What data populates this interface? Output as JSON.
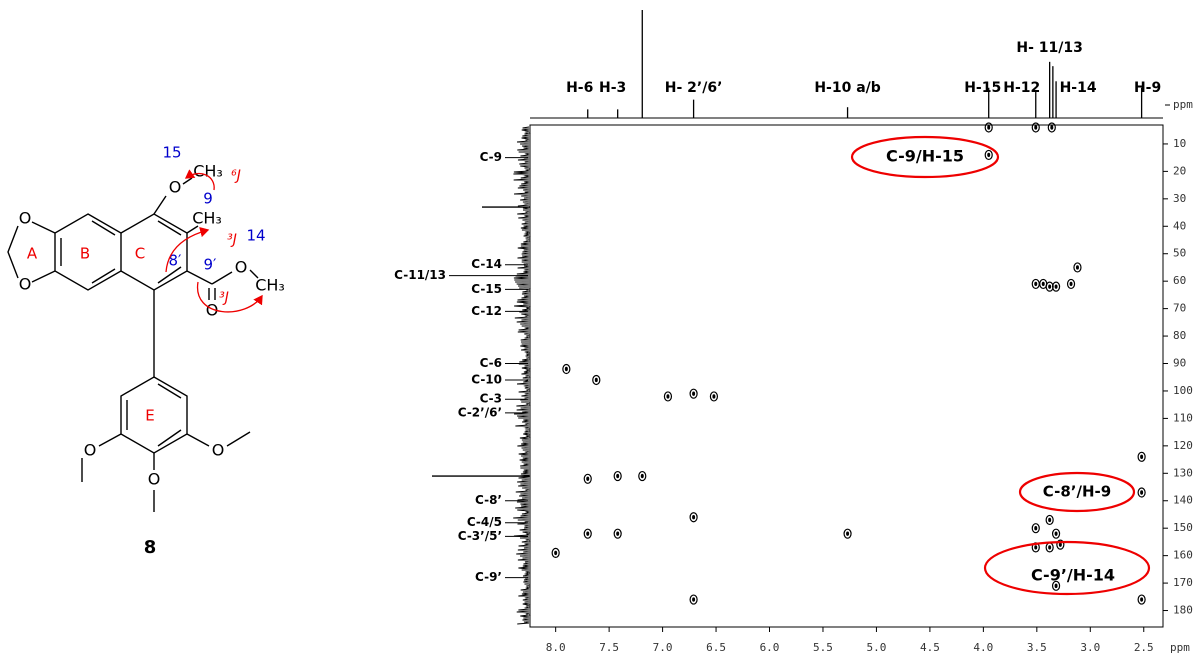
{
  "structure": {
    "atoms": [
      "O",
      "O",
      "O",
      "CH₃",
      "CH₃",
      "O",
      "O",
      "CH₃",
      "O",
      "O",
      "O"
    ],
    "ring_labels": [
      "A",
      "B",
      "C",
      "E"
    ],
    "atom_numbers": [
      "15",
      "9",
      "8′",
      "9′",
      "14"
    ],
    "couplings": [
      "⁶J",
      "³J",
      "³J"
    ],
    "compound": "8"
  },
  "spectrum": {
    "xlim": [
      8.24,
      2.32
    ],
    "ylim": [
      3.1,
      186
    ],
    "xticks": [
      {
        "value": 8,
        "label": "8.0"
      },
      7.5,
      {
        "value": 7,
        "label": "7.0"
      },
      6.5,
      {
        "value": 6,
        "label": "6.0"
      },
      5.5,
      {
        "value": 5,
        "label": "5.0"
      },
      4.5,
      {
        "value": 4,
        "label": "4.0"
      },
      3.5,
      {
        "value": 3,
        "label": "3.0"
      },
      2.5
    ],
    "yticks": [
      10,
      20,
      30,
      40,
      50,
      60,
      70,
      80,
      90,
      100,
      110,
      120,
      130,
      140,
      150,
      160,
      170,
      180
    ],
    "x_unit": "ppm",
    "y_unit": "ppm",
    "proton_peaks": [
      {
        "label": "H-6",
        "shift": 7.7,
        "intensity": 8
      },
      {
        "label": "H-3",
        "shift": 7.42,
        "intensity": 8
      },
      {
        "label": "H- 2’/6’",
        "shift": 6.71,
        "intensity": 17
      },
      {
        "label": "H-10 a/b",
        "shift": 5.27,
        "intensity": 10
      },
      {
        "label": "H-15",
        "shift": 3.95,
        "intensity": 28
      },
      {
        "label": "H-12",
        "shift": 3.51,
        "intensity": 26
      },
      {
        "label": "H- 11/13",
        "shift": 3.38,
        "intensity": 52
      },
      {
        "label": "H-14",
        "shift": 3.32,
        "intensity": 34
      },
      {
        "label": "H-9",
        "shift": 2.52,
        "intensity": 28
      },
      {
        "label": null,
        "shift": 7.19,
        "intensity": 100
      },
      {
        "label": null,
        "shift": 3.35,
        "intensity": 48
      }
    ],
    "carbon_labels": [
      {
        "label": "C-9",
        "shift": 15
      },
      {
        "label": "C-14",
        "shift": 54
      },
      {
        "label": "C-11/13",
        "shift": 58
      },
      {
        "label": "C-15",
        "shift": 63
      },
      {
        "label": "C-12",
        "shift": 71
      },
      {
        "label": "C-6",
        "shift": 90
      },
      {
        "label": "C-10",
        "shift": 96
      },
      {
        "label": "C-3",
        "shift": 103
      },
      {
        "label": "C-2’/6’",
        "shift": 108
      },
      {
        "label": "C-8’",
        "shift": 140
      },
      {
        "label": "C-4/5",
        "shift": 148
      },
      {
        "label": "C-3’/5’",
        "shift": 153
      },
      {
        "label": "C-9’",
        "shift": 168
      }
    ],
    "carbon_projection_peaks": [
      {
        "shift": 131,
        "intensity": 98
      },
      {
        "shift": 33,
        "intensity": 48
      }
    ],
    "cross_peaks": [
      {
        "h": 3.95,
        "c": 4
      },
      {
        "h": 3.95,
        "c": 14
      },
      {
        "h": 3.51,
        "c": 4
      },
      {
        "h": 3.36,
        "c": 4
      },
      {
        "h": 3.51,
        "c": 61
      },
      {
        "h": 3.44,
        "c": 61
      },
      {
        "h": 3.38,
        "c": 62
      },
      {
        "h": 3.32,
        "c": 62
      },
      {
        "h": 3.18,
        "c": 61
      },
      {
        "h": 3.12,
        "c": 55
      },
      {
        "h": 7.9,
        "c": 92
      },
      {
        "h": 7.62,
        "c": 96
      },
      {
        "h": 6.95,
        "c": 102
      },
      {
        "h": 6.71,
        "c": 101
      },
      {
        "h": 6.52,
        "c": 102
      },
      {
        "h": 2.52,
        "c": 124
      },
      {
        "h": 2.52,
        "c": 137
      },
      {
        "h": 7.7,
        "c": 132
      },
      {
        "h": 7.42,
        "c": 131
      },
      {
        "h": 7.19,
        "c": 131
      },
      {
        "h": 7.7,
        "c": 152
      },
      {
        "h": 7.42,
        "c": 152
      },
      {
        "h": 6.71,
        "c": 146
      },
      {
        "h": 5.27,
        "c": 152
      },
      {
        "h": 3.51,
        "c": 157
      },
      {
        "h": 3.51,
        "c": 150
      },
      {
        "h": 3.38,
        "c": 147
      },
      {
        "h": 3.32,
        "c": 152
      },
      {
        "h": 3.38,
        "c": 157
      },
      {
        "h": 3.28,
        "c": 156
      },
      {
        "h": 8.0,
        "c": 159
      },
      {
        "h": 3.32,
        "c": 171
      },
      {
        "h": 6.71,
        "c": 176
      },
      {
        "h": 2.52,
        "c": 176
      }
    ],
    "annotations": [
      "C-9/H-15",
      "C-8’/H-9",
      "C-9’/H-14"
    ]
  }
}
